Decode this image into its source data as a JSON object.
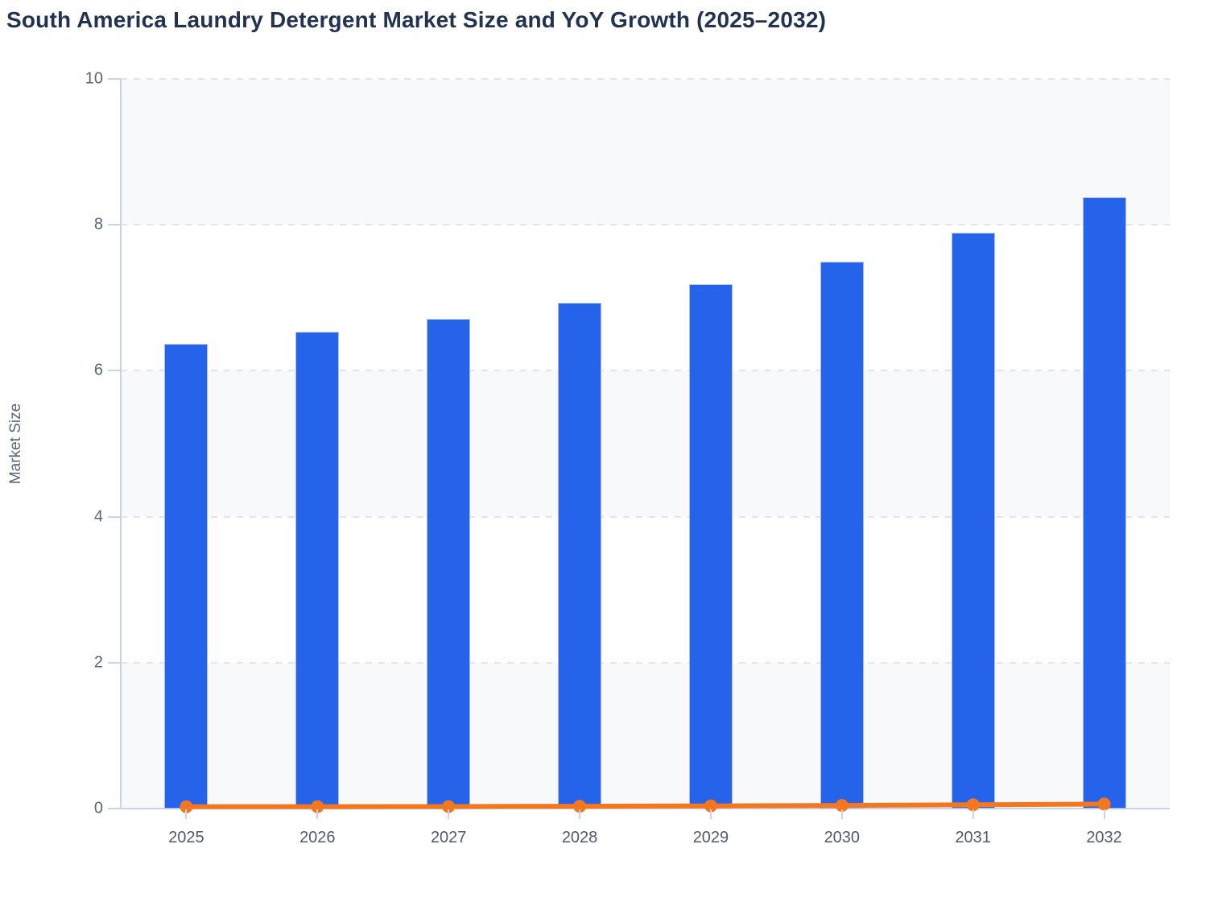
{
  "title": "South America Laundry Detergent Market Size and YoY Growth (2025–2032)",
  "colors": {
    "title": "#213350",
    "bar_fill": "#2563eb",
    "bar_border": "#aabdf2",
    "line": "#f4771e",
    "marker": "#f4771e",
    "gridline": "#e3e5ea",
    "axis_line": "#c9d3f0",
    "band_fill": "#f8f9fb",
    "tick_label": "#5a6477",
    "axis_title": "#5b6678",
    "background": "#ffffff"
  },
  "chart_data": {
    "type": "bar",
    "title": "South America Laundry Detergent Market Size and YoY Growth (2025–2032)",
    "categories": [
      "2025",
      "2026",
      "2027",
      "2028",
      "2029",
      "2030",
      "2031",
      "2032"
    ],
    "series": [
      {
        "name": "Market Size",
        "type": "bar",
        "values": [
          6.37,
          6.53,
          6.71,
          6.93,
          7.18,
          7.49,
          7.89,
          8.38
        ]
      },
      {
        "name": "YoY Growth",
        "type": "line",
        "values": [
          0.025,
          0.026,
          0.028,
          0.032,
          0.037,
          0.043,
          0.052,
          0.062
        ]
      }
    ],
    "xlabel": "",
    "ylabel": "Market Size",
    "ylim": [
      0,
      10
    ],
    "yticks": [
      0,
      2,
      4,
      6,
      8,
      10
    ],
    "grid": "horizontal-dashed",
    "bands": "alternating-light",
    "legend": "none"
  }
}
